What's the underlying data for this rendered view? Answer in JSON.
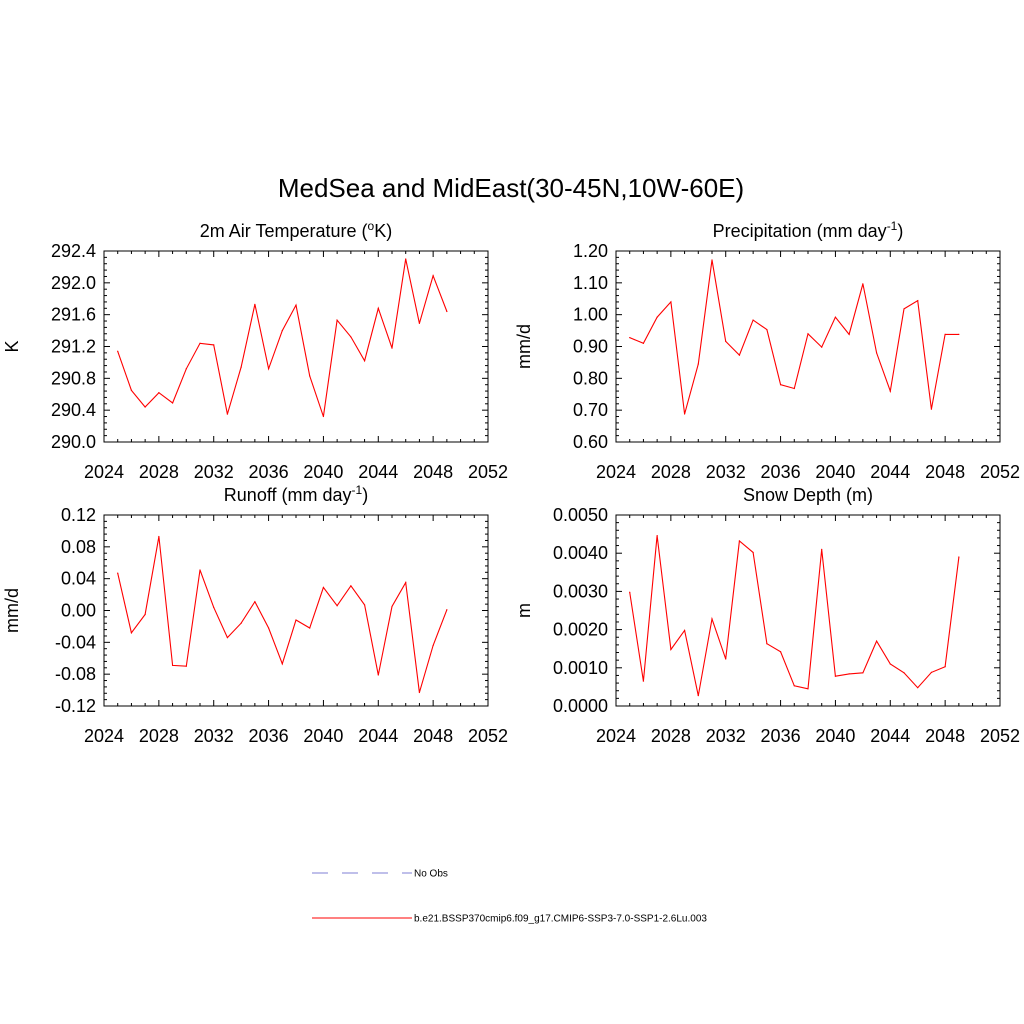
{
  "title": "MedSea and MidEast(30-45N,10W-60E)",
  "line_color": "#ff0000",
  "obs_color": "#9999dd",
  "legend": {
    "obs_label": "No Obs",
    "model_label": "b.e21.BSSP370cmip6.f09_g17.CMIP6-SSP3-7.0-SSP1-2.6Lu.003"
  },
  "chart_data": [
    {
      "type": "line",
      "title_main": "2m Air Temperature (",
      "title_sup": "o",
      "title_after": "K)",
      "ylabel": "K",
      "xlim": [
        2024,
        2052
      ],
      "x_ticks": [
        2024,
        2028,
        2032,
        2036,
        2040,
        2044,
        2048,
        2052
      ],
      "ylim": [
        290.0,
        292.4
      ],
      "y_ticks": [
        "290.0",
        "290.4",
        "290.8",
        "291.2",
        "291.6",
        "292.0",
        "292.4"
      ],
      "x": [
        2025,
        2026,
        2027,
        2028,
        2029,
        2030,
        2031,
        2032,
        2033,
        2034,
        2035,
        2036,
        2037,
        2038,
        2039,
        2040,
        2041,
        2042,
        2043,
        2044,
        2045,
        2046,
        2047,
        2048,
        2049
      ],
      "y": [
        291.14,
        290.65,
        290.44,
        290.62,
        290.49,
        290.92,
        291.24,
        291.22,
        290.35,
        290.94,
        291.73,
        290.92,
        291.4,
        291.72,
        290.83,
        290.32,
        291.53,
        291.32,
        291.02,
        291.68,
        291.18,
        292.3,
        291.49,
        292.09,
        291.64
      ]
    },
    {
      "type": "line",
      "title_main": "Precipitation (mm day",
      "title_sup": "-1",
      "title_after": ")",
      "ylabel": "mm/d",
      "xlim": [
        2024,
        2052
      ],
      "x_ticks": [
        2024,
        2028,
        2032,
        2036,
        2040,
        2044,
        2048,
        2052
      ],
      "ylim": [
        0.6,
        1.2
      ],
      "y_ticks": [
        "0.60",
        "0.70",
        "0.80",
        "0.90",
        "1.00",
        "1.10",
        "1.20"
      ],
      "x": [
        2025,
        2026,
        2027,
        2028,
        2029,
        2030,
        2031,
        2032,
        2033,
        2034,
        2035,
        2036,
        2037,
        2038,
        2039,
        2040,
        2041,
        2042,
        2043,
        2044,
        2045,
        2046,
        2047,
        2048,
        2049
      ],
      "y": [
        0.928,
        0.91,
        0.992,
        1.04,
        0.688,
        0.845,
        1.172,
        0.916,
        0.873,
        0.983,
        0.953,
        0.78,
        0.768,
        0.94,
        0.898,
        0.992,
        0.938,
        1.097,
        0.88,
        0.76,
        1.018,
        1.044,
        0.703,
        0.938,
        0.938
      ]
    },
    {
      "type": "line",
      "title_main": "Runoff (mm day",
      "title_sup": "-1",
      "title_after": ")",
      "ylabel": "mm/d",
      "xlim": [
        2024,
        2052
      ],
      "x_ticks": [
        2024,
        2028,
        2032,
        2036,
        2040,
        2044,
        2048,
        2052
      ],
      "ylim": [
        -0.12,
        0.12
      ],
      "y_ticks": [
        "-0.12",
        "-0.08",
        "-0.04",
        "0.00",
        "0.04",
        "0.08",
        "0.12"
      ],
      "x": [
        2025,
        2026,
        2027,
        2028,
        2029,
        2030,
        2031,
        2032,
        2033,
        2034,
        2035,
        2036,
        2037,
        2038,
        2039,
        2040,
        2041,
        2042,
        2043,
        2044,
        2045,
        2046,
        2047,
        2048,
        2049
      ],
      "y": [
        0.047,
        -0.028,
        -0.005,
        0.093,
        -0.069,
        -0.07,
        0.051,
        0.004,
        -0.034,
        -0.016,
        0.011,
        -0.022,
        -0.067,
        -0.012,
        -0.022,
        0.029,
        0.006,
        0.031,
        0.007,
        -0.081,
        0.005,
        0.035,
        -0.103,
        -0.044,
        0.001
      ]
    },
    {
      "type": "line",
      "title_main": "Snow Depth (m)",
      "title_sup": "",
      "title_after": "",
      "ylabel": "m",
      "xlim": [
        2024,
        2052
      ],
      "x_ticks": [
        2024,
        2028,
        2032,
        2036,
        2040,
        2044,
        2048,
        2052
      ],
      "ylim": [
        0.0,
        0.005
      ],
      "y_ticks": [
        "0.0000",
        "0.0010",
        "0.0020",
        "0.0030",
        "0.0040",
        "0.0050"
      ],
      "x": [
        2025,
        2026,
        2027,
        2028,
        2029,
        2030,
        2031,
        2032,
        2033,
        2034,
        2035,
        2036,
        2037,
        2038,
        2039,
        2040,
        2041,
        2042,
        2043,
        2044,
        2045,
        2046,
        2047,
        2048,
        2049
      ],
      "y": [
        0.00298,
        0.00065,
        0.00446,
        0.00148,
        0.00198,
        0.00027,
        0.00228,
        0.00123,
        0.00432,
        0.00402,
        0.00163,
        0.00142,
        0.00053,
        0.00045,
        0.0041,
        0.00078,
        0.00084,
        0.00087,
        0.0017,
        0.0011,
        0.00087,
        0.00048,
        0.00088,
        0.00103,
        0.0039
      ]
    }
  ]
}
